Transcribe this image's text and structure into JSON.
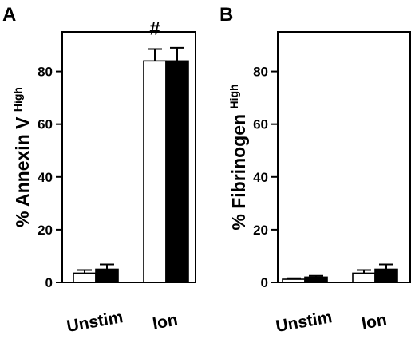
{
  "chart_data": [
    {
      "type": "bar",
      "panel": "A",
      "categories": [
        "Unstim",
        "Ion"
      ],
      "series": [
        {
          "values": [
            3.5,
            84
          ],
          "errors": [
            1.2,
            4.5
          ],
          "color": "#ffffff"
        },
        {
          "values": [
            5,
            84
          ],
          "errors": [
            1.8,
            5
          ],
          "color": "#000000"
        }
      ],
      "ylabel": "% Annexin V",
      "ylabel_superscript": "High",
      "ylim": [
        0,
        95
      ],
      "yticks": [
        "0",
        "20",
        "40",
        "60",
        "80"
      ],
      "annotations": [
        {
          "text": "#",
          "category": "Ion",
          "series": 0
        }
      ],
      "grid": false
    },
    {
      "type": "bar",
      "panel": "B",
      "categories": [
        "Unstim",
        "Ion"
      ],
      "series": [
        {
          "values": [
            1.2,
            3.5
          ],
          "errors": [
            0.4,
            1.2
          ],
          "color": "#ffffff"
        },
        {
          "values": [
            2,
            5
          ],
          "errors": [
            0.5,
            1.8
          ],
          "color": "#000000"
        }
      ],
      "ylabel": "% Fibrinogen",
      "ylabel_superscript": "High",
      "ylim": [
        0,
        95
      ],
      "yticks": [
        "0",
        "20",
        "40",
        "60",
        "80"
      ],
      "annotations": [],
      "grid": false
    }
  ]
}
